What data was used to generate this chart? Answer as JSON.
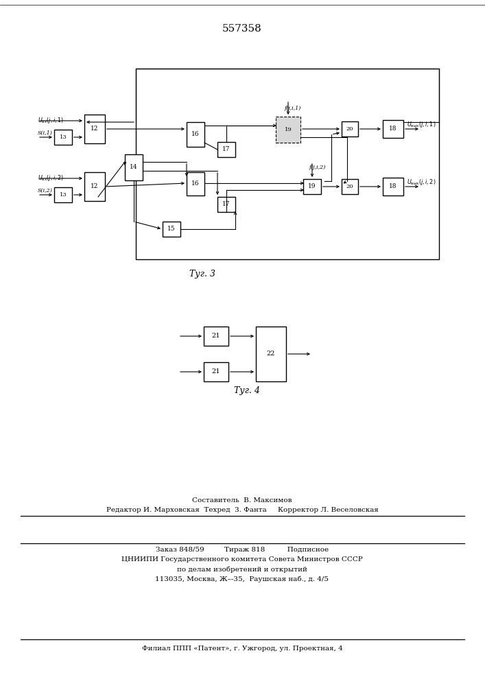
{
  "title": "557358",
  "fig3_caption": "Τуг. 3",
  "fig4_caption": "Τуг. 4",
  "footer_line0": "Составитель  В. Максимов",
  "footer_line1": "Редактор И. Марховская  Техред  3. Фанта     Корректор Л. Веселовская",
  "footer_line2": "Заказ 848/59         Тираж 818          Подписное",
  "footer_line3": "ЦНИИПИ Государственного комитета Совета Министров СССР",
  "footer_line4": "по делам изобретений и открытий",
  "footer_line5": "113035, Москва, Ж–-35,  Раушская наб., д. 4/5",
  "footer_line6": "Филиал ППП «Патент», г. Ужгород, ул. Проектная, 4",
  "bg_color": "#ffffff"
}
